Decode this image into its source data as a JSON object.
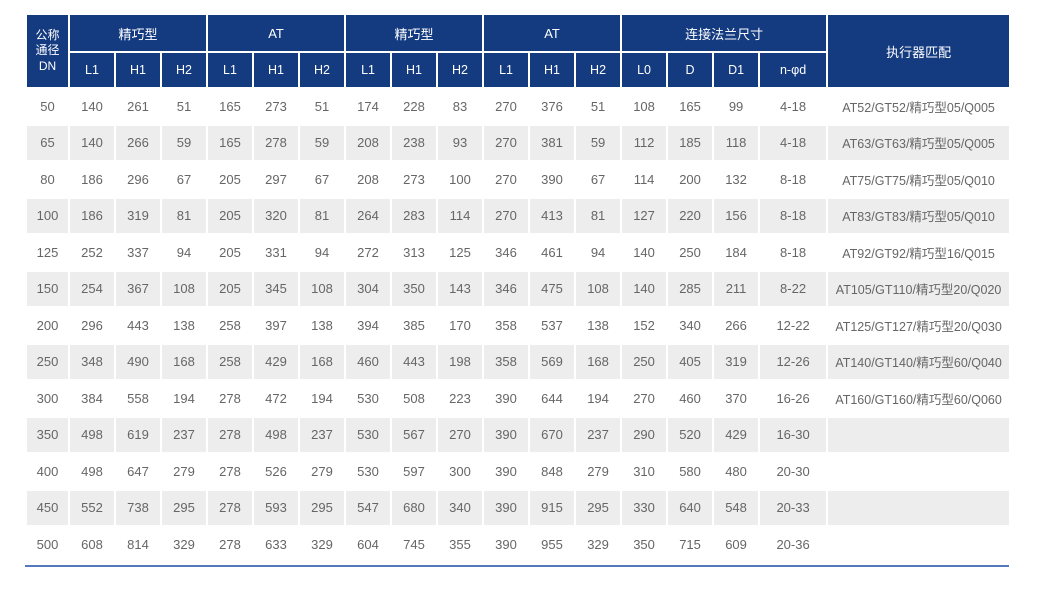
{
  "colors": {
    "header_bg": "#143a80",
    "header_text": "#ffffff",
    "stripe_bg": "#ededed",
    "body_text": "#666666",
    "bottom_line": "#5577bb"
  },
  "table": {
    "dn_header": "公称\n通径\nDN",
    "groups": [
      {
        "label": "精巧型",
        "cols": [
          "L1",
          "H1",
          "H2"
        ]
      },
      {
        "label": "AT",
        "cols": [
          "L1",
          "H1",
          "H2"
        ]
      },
      {
        "label": "精巧型",
        "cols": [
          "L1",
          "H1",
          "H2"
        ]
      },
      {
        "label": "AT",
        "cols": [
          "L1",
          "H1",
          "H2"
        ]
      },
      {
        "label": "连接法兰尺寸",
        "cols": [
          "L0",
          "D",
          "D1",
          "n-φd"
        ]
      }
    ],
    "actuator_header": "执行器匹配",
    "rows": [
      {
        "dn": "50",
        "values": [
          "140",
          "261",
          "51",
          "165",
          "273",
          "51",
          "174",
          "228",
          "83",
          "270",
          "376",
          "51",
          "108",
          "165",
          "99",
          "4-18"
        ],
        "actuator": "AT52/GT52/精巧型05/Q005"
      },
      {
        "dn": "65",
        "values": [
          "140",
          "266",
          "59",
          "165",
          "278",
          "59",
          "208",
          "238",
          "93",
          "270",
          "381",
          "59",
          "112",
          "185",
          "118",
          "4-18"
        ],
        "actuator": "AT63/GT63/精巧型05/Q005"
      },
      {
        "dn": "80",
        "values": [
          "186",
          "296",
          "67",
          "205",
          "297",
          "67",
          "208",
          "273",
          "100",
          "270",
          "390",
          "67",
          "114",
          "200",
          "132",
          "8-18"
        ],
        "actuator": "AT75/GT75/精巧型05/Q010"
      },
      {
        "dn": "100",
        "values": [
          "186",
          "319",
          "81",
          "205",
          "320",
          "81",
          "264",
          "283",
          "114",
          "270",
          "413",
          "81",
          "127",
          "220",
          "156",
          "8-18"
        ],
        "actuator": "AT83/GT83/精巧型05/Q010"
      },
      {
        "dn": "125",
        "values": [
          "252",
          "337",
          "94",
          "205",
          "331",
          "94",
          "272",
          "313",
          "125",
          "346",
          "461",
          "94",
          "140",
          "250",
          "184",
          "8-18"
        ],
        "actuator": "AT92/GT92/精巧型16/Q015"
      },
      {
        "dn": "150",
        "values": [
          "254",
          "367",
          "108",
          "205",
          "345",
          "108",
          "304",
          "350",
          "143",
          "346",
          "475",
          "108",
          "140",
          "285",
          "211",
          "8-22"
        ],
        "actuator": "AT105/GT110/精巧型20/Q020"
      },
      {
        "dn": "200",
        "values": [
          "296",
          "443",
          "138",
          "258",
          "397",
          "138",
          "394",
          "385",
          "170",
          "358",
          "537",
          "138",
          "152",
          "340",
          "266",
          "12-22"
        ],
        "actuator": "AT125/GT127/精巧型20/Q030"
      },
      {
        "dn": "250",
        "values": [
          "348",
          "490",
          "168",
          "258",
          "429",
          "168",
          "460",
          "443",
          "198",
          "358",
          "569",
          "168",
          "250",
          "405",
          "319",
          "12-26"
        ],
        "actuator": "AT140/GT140/精巧型60/Q040"
      },
      {
        "dn": "300",
        "values": [
          "384",
          "558",
          "194",
          "278",
          "472",
          "194",
          "530",
          "508",
          "223",
          "390",
          "644",
          "194",
          "270",
          "460",
          "370",
          "16-26"
        ],
        "actuator": "AT160/GT160/精巧型60/Q060"
      },
      {
        "dn": "350",
        "values": [
          "498",
          "619",
          "237",
          "278",
          "498",
          "237",
          "530",
          "567",
          "270",
          "390",
          "670",
          "237",
          "290",
          "520",
          "429",
          "16-30"
        ],
        "actuator": ""
      },
      {
        "dn": "400",
        "values": [
          "498",
          "647",
          "279",
          "278",
          "526",
          "279",
          "530",
          "597",
          "300",
          "390",
          "848",
          "279",
          "310",
          "580",
          "480",
          "20-30"
        ],
        "actuator": ""
      },
      {
        "dn": "450",
        "values": [
          "552",
          "738",
          "295",
          "278",
          "593",
          "295",
          "547",
          "680",
          "340",
          "390",
          "915",
          "295",
          "330",
          "640",
          "548",
          "20-33"
        ],
        "actuator": ""
      },
      {
        "dn": "500",
        "values": [
          "608",
          "814",
          "329",
          "278",
          "633",
          "329",
          "604",
          "745",
          "355",
          "390",
          "955",
          "329",
          "350",
          "715",
          "609",
          "20-36"
        ],
        "actuator": ""
      }
    ]
  }
}
